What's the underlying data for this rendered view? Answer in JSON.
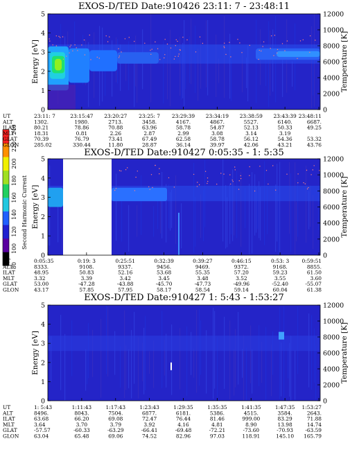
{
  "chart_data": [
    {
      "type": "heatmap",
      "title": "EXOS-D/TED  Date:910426  23:11: 7 - 23:48:11",
      "ylabel": "Energy [eV]",
      "y2label": "Temperature [K]",
      "ylim": [
        0,
        5
      ],
      "y2lim": [
        0,
        12000
      ],
      "yticks": [
        "0",
        "1",
        "2",
        "3",
        "4",
        "5"
      ],
      "y2ticks": [
        "0",
        "2000",
        "4000",
        "6000",
        "8000",
        "10000",
        "12000"
      ],
      "time_columns": [
        "23:11: 7",
        "23:15:47",
        "23:20:27",
        "23:25: 7",
        "23:29:39",
        "23:34:19",
        "23:38:59",
        "23:43:39",
        "23:48:11"
      ],
      "table": {
        "row_labels": [
          "UT",
          "ALT",
          "ILAT",
          "MLT",
          "GLAT",
          "GLON"
        ],
        "rows": [
          [
            "23:11: 7",
            "23:15:47",
            "23:20:27",
            "23:25: 7",
            "23:29:39",
            "23:34:19",
            "23:38:59",
            "23:43:39",
            "23:48:11"
          ],
          [
            "1302.",
            "1980.",
            "2713.",
            "3458.",
            "4167.",
            "4867.",
            "5527.",
            "6140.",
            "6687."
          ],
          [
            "80.21",
            "78.86",
            "70.88",
            "63.96",
            "58.78",
            "54.87",
            "52.13",
            "50.33",
            "49.25"
          ],
          [
            "18.31",
            "0.81",
            "2.26",
            "2.87",
            "2.99",
            "3.08",
            "3.14",
            "3.19",
            ""
          ],
          [
            "70.39",
            "76.79",
            "73.41",
            "67.49",
            "62.58",
            "58.78",
            "56.12",
            "54.36",
            "53.32"
          ],
          [
            "285.02",
            "330.44",
            "11.80",
            "28.87",
            "36.14",
            "39.97",
            "42.06",
            "43.21",
            "43.76"
          ]
        ]
      }
    },
    {
      "type": "heatmap",
      "title": "EXOS-D/TED   Date:910427  0:05:35 - 1: 5:35",
      "ylabel": "Energy [eV]",
      "y2label": "Temperature [K]",
      "ylim": [
        0,
        5
      ],
      "y2lim": [
        0,
        12000
      ],
      "yticks": [
        "0",
        "1",
        "2",
        "3",
        "4",
        "5"
      ],
      "y2ticks": [
        "0",
        "2000",
        "4000",
        "6000",
        "8000",
        "10000",
        "12000"
      ],
      "data_gap": [
        "0:08",
        "0:19"
      ],
      "time_columns": [
        "0:05:35",
        "0:19: 3",
        "0:25:51",
        "0:32:39",
        "0:39:27",
        "0:46:15",
        "0:53: 3",
        "0:59:51"
      ],
      "table": {
        "row_labels": [
          "UT",
          "ALT",
          "ILAT",
          "MLT",
          "GLAT",
          "GLON"
        ],
        "rows": [
          [
            "0:05:35",
            "0:19: 3",
            "0:25:51",
            "0:32:39",
            "0:39:27",
            "0:46:15",
            "0:53: 3",
            "0:59:51"
          ],
          [
            "8333.",
            "9108.",
            "9337.",
            "9456.",
            "9469.",
            "9372.",
            "9168.",
            "8855."
          ],
          [
            "48.95",
            "50.83",
            "52.16",
            "53.68",
            "55.35",
            "57.20",
            "59.23",
            "61.50"
          ],
          [
            "3.32",
            "3.39",
            "3.42",
            "3.45",
            "3.48",
            "3.52",
            "3.55",
            "3.60"
          ],
          [
            "53.00",
            "-47.28",
            "-43.88",
            "-45.70",
            "-47.73",
            "-49.96",
            "-52.40",
            "-55.07"
          ],
          [
            "43.17",
            "57.85",
            "57.95",
            "58.17",
            "58.54",
            "59.14",
            "60.04",
            "61.38"
          ]
        ]
      }
    },
    {
      "type": "heatmap",
      "title": "EXOS-D/TED   Date:910427   1: 5:43 - 1:53:27",
      "ylabel": "Energy [eV]",
      "y2label": "Temperature [K]",
      "ylim": [
        0,
        5
      ],
      "y2lim": [
        0,
        12000
      ],
      "yticks": [
        "0",
        "1",
        "2",
        "3",
        "4",
        "5"
      ],
      "y2ticks": [
        "0",
        "2000",
        "4000",
        "6000",
        "8000",
        "10000",
        "12000"
      ],
      "time_columns": [
        "1: 5:43",
        "1:11:43",
        "1:17:43",
        "1:23:43",
        "1:29:35",
        "1:35:35",
        "1:41:35",
        "1:47:35",
        "1:53:27"
      ],
      "table": {
        "row_labels": [
          "UT",
          "ALT",
          "ILAT",
          "MLT",
          "GLAT",
          "GLON"
        ],
        "rows": [
          [
            "1: 5:43",
            "1:11:43",
            "1:17:43",
            "1:23:43",
            "1:29:35",
            "1:35:35",
            "1:41:35",
            "1:47:35",
            "1:53:27"
          ],
          [
            "8496.",
            "8043.",
            "7504.",
            "6877.",
            "6181.",
            "5386.",
            "4515.",
            "3584.",
            "2643."
          ],
          [
            "63.68",
            "66.20",
            "69.08",
            "72.47",
            "76.44",
            "81.46",
            "999.00",
            "83.29",
            "71.88"
          ],
          [
            "3.64",
            "3.70",
            "3.79",
            "3.92",
            "4.16",
            "4.81",
            "8.90",
            "13.98",
            "14.74"
          ],
          [
            "-57.57",
            "-60.33",
            "-63.29",
            "-66.41",
            "-69.48",
            "-72.21",
            "-73.60",
            "-70.93",
            "-63.59"
          ],
          [
            "63.04",
            "65.48",
            "69.06",
            "74.52",
            "82.96",
            "97.03",
            "118.91",
            "145.10",
            "165.79"
          ]
        ]
      }
    }
  ],
  "colorbar": {
    "label": "Second Harmonic Current",
    "ticks": [
      "80",
      "100",
      "120",
      "140",
      "160",
      "180",
      "200",
      "220",
      "240"
    ],
    "range": [
      80,
      240
    ],
    "colors": [
      "#000000",
      "#5a00a0",
      "#2020d0",
      "#2060ff",
      "#20c8e0",
      "#20d060",
      "#a0e020",
      "#f0f000",
      "#ff9000",
      "#ff2020"
    ]
  }
}
